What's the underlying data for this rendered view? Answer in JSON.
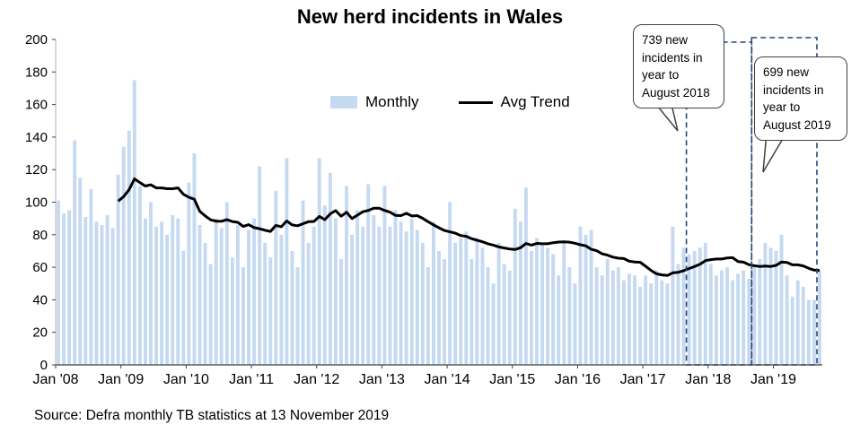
{
  "title": "New herd incidents in Wales",
  "source": "Source: Defra monthly TB statistics at 13 November 2019",
  "legend": {
    "monthly": "Monthly",
    "trend": "Avg Trend"
  },
  "callouts": [
    {
      "text": "739 new incidents in year to August 2018"
    },
    {
      "text": "699 new incidents in year to August 2019"
    }
  ],
  "colors": {
    "bar": "#C5D9F1",
    "trend": "#000000",
    "highlight": "#264478",
    "axis": "#404040"
  },
  "chart_data": {
    "type": "bar",
    "title": "New herd incidents in Wales",
    "xlabel": "",
    "ylabel": "",
    "ylim": [
      0,
      200
    ],
    "y_ticks": [
      0,
      20,
      40,
      60,
      80,
      100,
      120,
      140,
      160,
      180,
      200
    ],
    "x_start": "2008-01",
    "x_end": "2019-09",
    "x_tick_labels": [
      "Jan '08",
      "Jan '09",
      "Jan '10",
      "Jan '11",
      "Jan '12",
      "Jan '13",
      "Jan '14",
      "Jan '15",
      "Jan '16",
      "Jan '17",
      "Jan '18",
      "Jan '19"
    ],
    "grid": false,
    "legend_position": "inside-top",
    "series": [
      {
        "name": "Monthly",
        "type": "bar",
        "color": "#C5D9F1",
        "values": [
          101,
          93,
          95,
          138,
          115,
          91,
          108,
          88,
          86,
          92,
          84,
          117,
          134,
          144,
          175,
          110,
          90,
          100,
          85,
          88,
          80,
          92,
          90,
          70,
          112,
          130,
          86,
          75,
          62,
          90,
          84,
          100,
          66,
          86,
          60,
          83,
          90,
          122,
          75,
          66,
          107,
          80,
          127,
          70,
          60,
          101,
          75,
          85,
          127,
          98,
          118,
          90,
          65,
          110,
          80,
          95,
          85,
          111,
          92,
          85,
          110,
          85,
          95,
          88,
          82,
          90,
          83,
          75,
          60,
          88,
          70,
          65,
          100,
          75,
          78,
          82,
          65,
          78,
          72,
          60,
          50,
          75,
          62,
          58,
          96,
          88,
          109,
          70,
          78,
          75,
          72,
          68,
          55,
          76,
          60,
          50,
          85,
          80,
          83,
          60,
          55,
          65,
          58,
          60,
          52,
          56,
          55,
          48,
          55,
          50,
          58,
          52,
          50,
          85,
          62,
          72,
          68,
          70,
          72,
          75,
          62,
          55,
          58,
          60,
          52,
          56,
          58,
          53,
          60,
          65,
          75,
          72,
          70,
          80,
          55,
          42,
          52,
          48,
          40,
          40,
          58
        ]
      },
      {
        "name": "Avg Trend",
        "type": "line",
        "color": "#000000",
        "derivation": "12-month rolling average of Monthly series"
      }
    ],
    "annotations": [
      {
        "text": "739 new incidents in year to August 2018",
        "total": 739,
        "period_start": "2017-09",
        "period_end": "2018-08"
      },
      {
        "text": "699 new incidents in year to August 2019",
        "total": 699,
        "period_start": "2018-09",
        "period_end": "2019-08"
      }
    ],
    "highlight_boxes": [
      {
        "label": "year to August 2018",
        "start_index": 116,
        "end_index": 127
      },
      {
        "label": "year to August 2019",
        "start_index": 128,
        "end_index": 139
      }
    ]
  }
}
